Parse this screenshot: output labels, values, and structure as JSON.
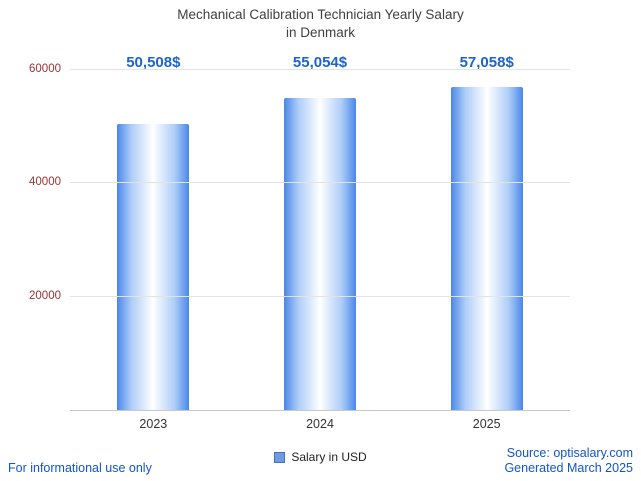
{
  "chart_data": {
    "type": "bar",
    "title": "Mechanical Calibration Technician Yearly Salary in Denmark",
    "title_lines": [
      "Mechanical Calibration Technician Yearly Salary",
      "in Denmark"
    ],
    "categories": [
      "2023",
      "2024",
      "2025"
    ],
    "values": [
      50508,
      55054,
      57058
    ],
    "value_labels": [
      "50,508$",
      "55,054$",
      "57,058$"
    ],
    "series_name": "Salary in USD",
    "ylim": [
      0,
      60000
    ],
    "y_ticks": [
      20000,
      40000,
      60000
    ],
    "grid": "horizontal",
    "legend_position": "bottom"
  },
  "legend": {
    "label": "Salary in USD"
  },
  "footer": {
    "disclaimer": "For informational use only",
    "source": "Source: optisalary.com",
    "generated": "Generated March 2025"
  },
  "colors": {
    "accent": "#1e63d0",
    "footer": "#1155cc",
    "bar_edge": "#4a87ea",
    "bar_mid": "#ffffff",
    "tick": "#993333",
    "grid": "#e3e3e3",
    "axis": "#c9c9c9",
    "title": "#3f3f3f",
    "legend": "#6f9be0"
  }
}
